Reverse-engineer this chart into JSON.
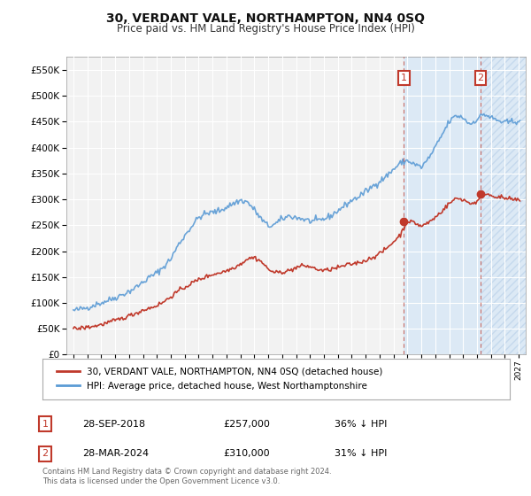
{
  "title": "30, VERDANT VALE, NORTHAMPTON, NN4 0SQ",
  "subtitle": "Price paid vs. HM Land Registry's House Price Index (HPI)",
  "legend_line1": "30, VERDANT VALE, NORTHAMPTON, NN4 0SQ (detached house)",
  "legend_line2": "HPI: Average price, detached house, West Northamptonshire",
  "annotation1_date": "28-SEP-2018",
  "annotation1_price": "£257,000",
  "annotation1_hpi": "36% ↓ HPI",
  "annotation2_date": "28-MAR-2024",
  "annotation2_price": "£310,000",
  "annotation2_hpi": "31% ↓ HPI",
  "footer": "Contains HM Land Registry data © Crown copyright and database right 2024.\nThis data is licensed under the Open Government Licence v3.0.",
  "hpi_color": "#5b9bd5",
  "price_color": "#c0392b",
  "annotation_box_color": "#c0392b",
  "background_color": "#ffffff",
  "plot_bg_color": "#f2f2f2",
  "grid_color": "#ffffff",
  "shade_color": "#dce9f5",
  "hatch_color": "#c5d9ed",
  "ylim": [
    0,
    575000
  ],
  "yticks": [
    0,
    50000,
    100000,
    150000,
    200000,
    250000,
    300000,
    350000,
    400000,
    450000,
    500000,
    550000
  ],
  "sale1_x": 2018.75,
  "sale1_y": 257000,
  "sale2_x": 2024.25,
  "sale2_y": 310000,
  "xmin": 1994.5,
  "xmax": 2027.5
}
